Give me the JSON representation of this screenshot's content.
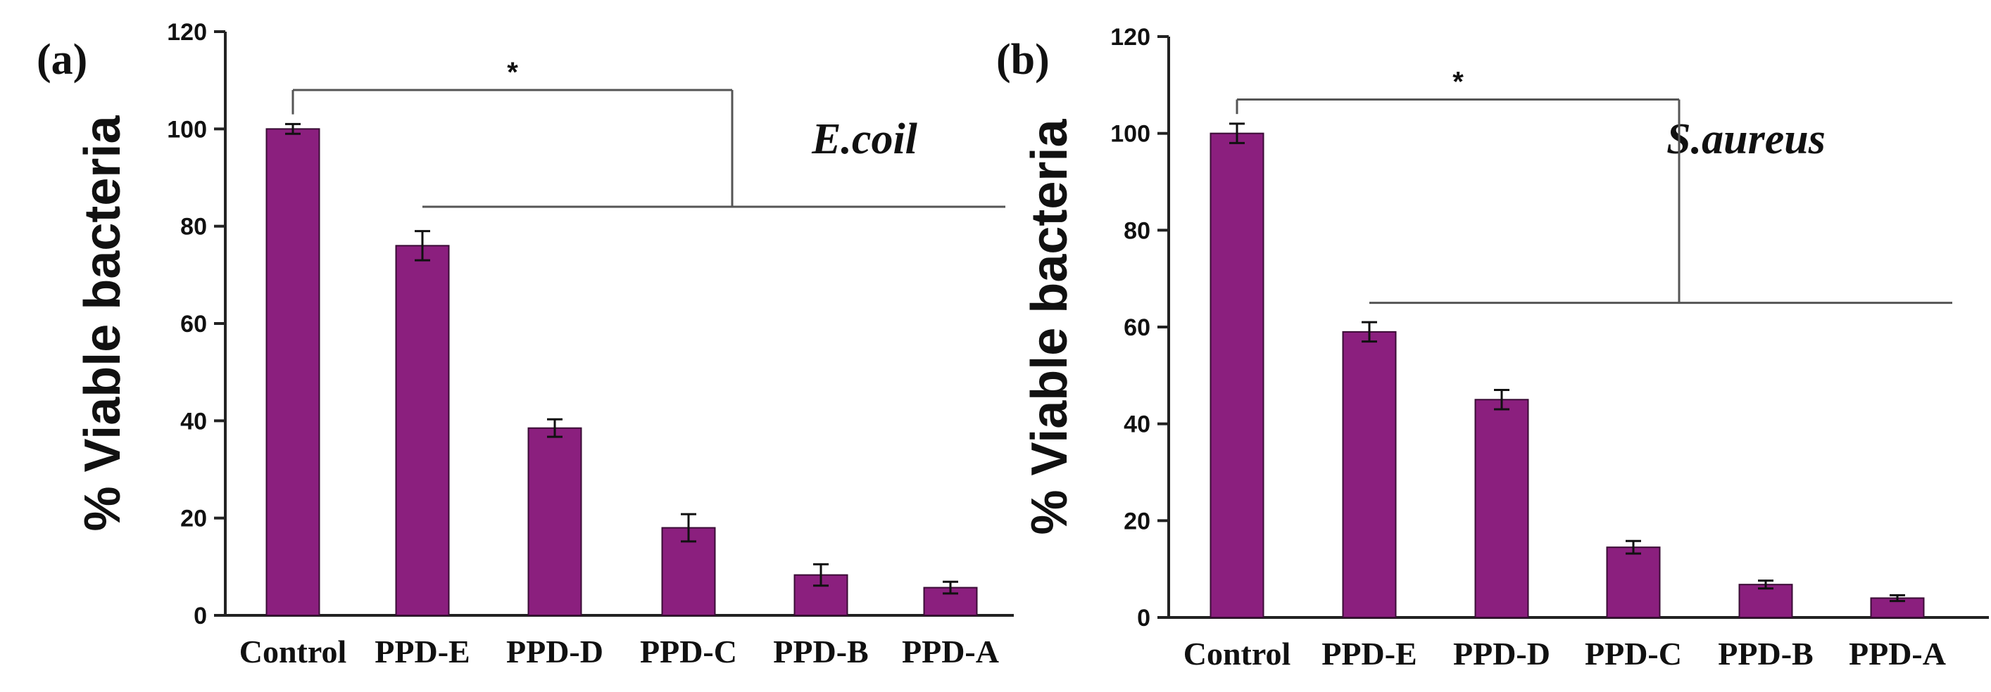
{
  "colors": {
    "bar": "#8B1F7E",
    "axis": "#222222",
    "bracket": "#555555",
    "text": "#111111"
  },
  "chart_data": [
    {
      "type": "bar",
      "panel_label": "(a)",
      "organism": "E.coil",
      "ylabel": "% Viable bacteria",
      "xlabel": "",
      "ylim": [
        0,
        120
      ],
      "yticks": [
        0,
        20,
        40,
        60,
        80,
        100,
        120
      ],
      "categories": [
        "Control",
        "PPD-E",
        "PPD-D",
        "PPD-C",
        "PPD-B",
        "PPD-A"
      ],
      "values": [
        100,
        76,
        38.5,
        18,
        8.3,
        5.7
      ],
      "errors": [
        1,
        3,
        1.8,
        2.8,
        2.2,
        1.2
      ],
      "significance": {
        "label": "*",
        "reference": "Control",
        "compared": [
          "PPD-E",
          "PPD-D",
          "PPD-C",
          "PPD-B",
          "PPD-A"
        ],
        "top_level": 108,
        "group_level": 84
      }
    },
    {
      "type": "bar",
      "panel_label": "(b)",
      "organism": "S.aureus",
      "ylabel": "% Viable bacteria",
      "xlabel": "",
      "ylim": [
        0,
        120
      ],
      "yticks": [
        0,
        20,
        40,
        60,
        80,
        100,
        120
      ],
      "categories": [
        "Control",
        "PPD-E",
        "PPD-D",
        "PPD-C",
        "PPD-B",
        "PPD-A"
      ],
      "values": [
        100,
        59,
        45,
        14.5,
        6.8,
        4
      ],
      "errors": [
        2,
        2,
        2,
        1.3,
        0.8,
        0.6
      ],
      "significance": {
        "label": "*",
        "reference": "Control",
        "compared": [
          "PPD-E",
          "PPD-D",
          "PPD-C",
          "PPD-B",
          "PPD-A"
        ],
        "top_level": 107,
        "group_level": 65
      }
    }
  ]
}
